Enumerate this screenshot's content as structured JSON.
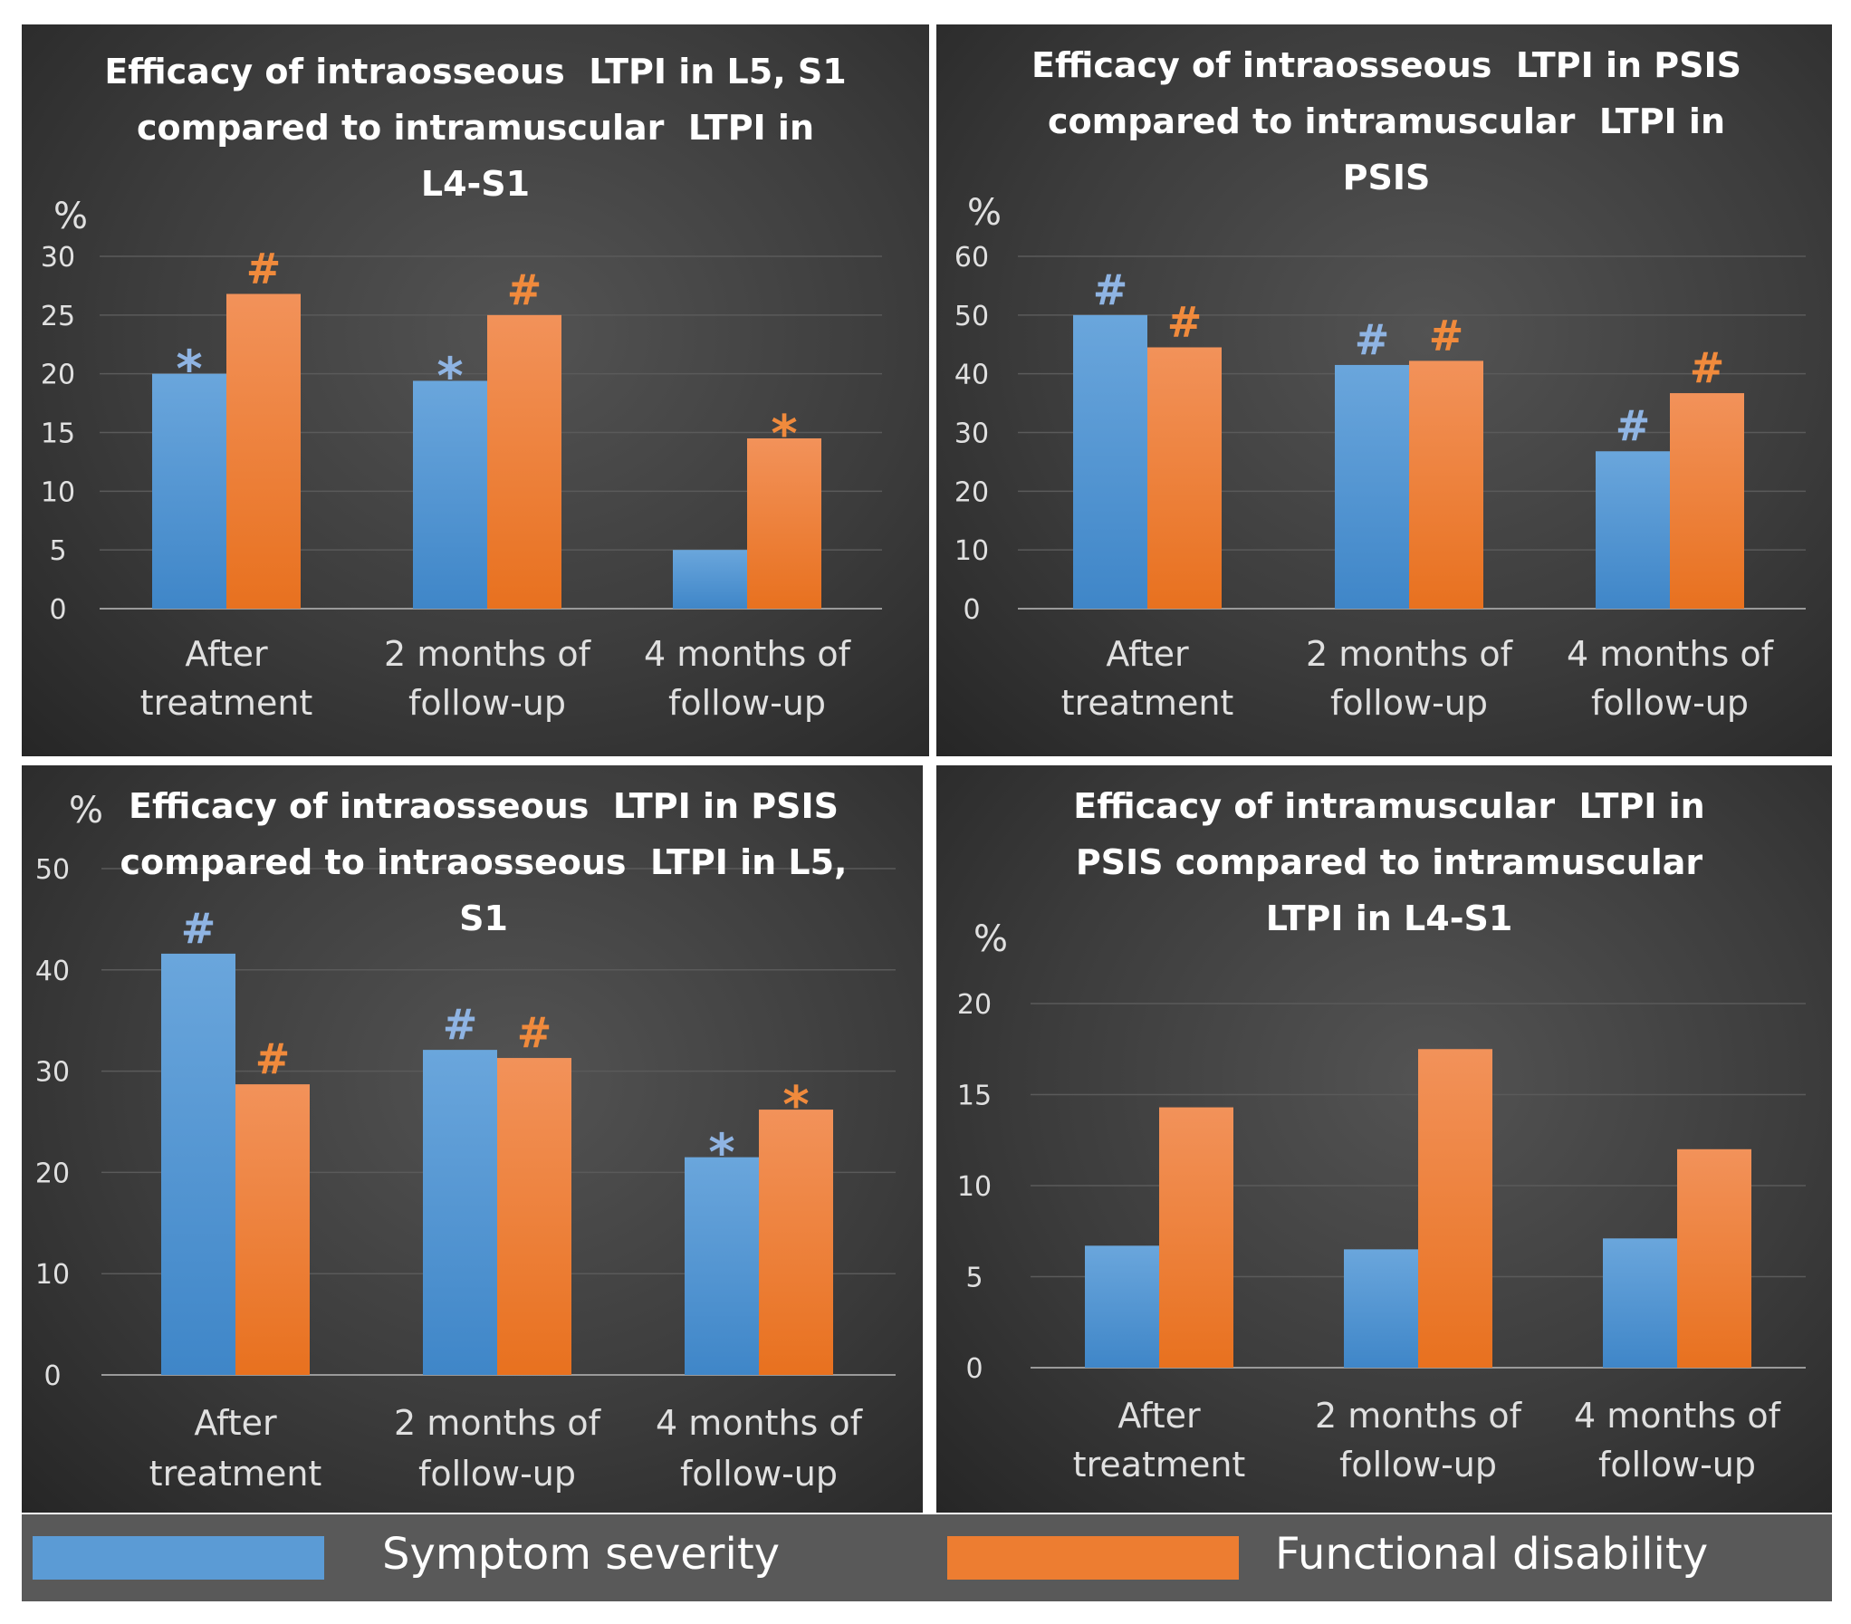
{
  "colors": {
    "symptom": "#5b9bd5",
    "functional": "#ed7d31",
    "symptom_mark": "#8fb4e3",
    "functional_mark": "#f08a3c",
    "axis_text": "#e0e0e0",
    "title_text": "#ffffff",
    "grid": "#5a5a5a",
    "baseline": "#9a9a9a"
  },
  "legend": {
    "items": [
      {
        "label": "Symptom severity",
        "color": "#5b9bd5"
      },
      {
        "label": "Functional disability",
        "color": "#ed7d31"
      }
    ]
  },
  "chart_data": [
    {
      "type": "bar",
      "title": [
        "Efficacy of intraosseous  LTPI in L5, S1",
        "compared to intramuscular  LTPI in",
        "L4-S1"
      ],
      "ylabel": "%",
      "ylim": [
        0,
        30
      ],
      "yticks": [
        0,
        5,
        10,
        15,
        20,
        25,
        30
      ],
      "grid": true,
      "categories": [
        [
          "After",
          "treatment"
        ],
        [
          "2 months of",
          "follow-up"
        ],
        [
          "4 months of",
          "follow-up"
        ]
      ],
      "series": [
        {
          "name": "Symptom severity",
          "values": [
            20,
            19.4,
            5
          ],
          "marks": [
            "*",
            "*",
            ""
          ]
        },
        {
          "name": "Functional disability",
          "values": [
            26.8,
            25,
            14.5
          ],
          "marks": [
            "#",
            "#",
            "*"
          ]
        }
      ]
    },
    {
      "type": "bar",
      "title": [
        "Efficacy of intraosseous  LTPI in PSIS",
        "compared to intramuscular  LTPI in",
        "PSIS"
      ],
      "ylabel": "%",
      "ylim": [
        0,
        60
      ],
      "yticks": [
        0,
        10,
        20,
        30,
        40,
        50,
        60
      ],
      "grid": true,
      "categories": [
        [
          "After",
          "treatment"
        ],
        [
          "2 months of",
          "follow-up"
        ],
        [
          "4 months of",
          "follow-up"
        ]
      ],
      "series": [
        {
          "name": "Symptom severity",
          "values": [
            50,
            41.5,
            26.8
          ],
          "marks": [
            "#",
            "#",
            "#"
          ]
        },
        {
          "name": "Functional disability",
          "values": [
            44.5,
            42.2,
            36.7
          ],
          "marks": [
            "#",
            "#",
            "#"
          ]
        }
      ]
    },
    {
      "type": "bar",
      "title": [
        "Efficacy of intraosseous  LTPI in PSIS",
        "compared to intraosseous  LTPI in L5,",
        "S1"
      ],
      "ylabel": "%",
      "ylim": [
        0,
        50
      ],
      "yticks": [
        0,
        10,
        20,
        30,
        40,
        50
      ],
      "grid": true,
      "categories": [
        [
          "After",
          "treatment"
        ],
        [
          "2 months of",
          "follow-up"
        ],
        [
          "4 months of",
          "follow-up"
        ]
      ],
      "series": [
        {
          "name": "Symptom severity",
          "values": [
            41.6,
            32.1,
            21.5
          ],
          "marks": [
            "#",
            "#",
            "*"
          ]
        },
        {
          "name": "Functional disability",
          "values": [
            28.7,
            31.3,
            26.2
          ],
          "marks": [
            "#",
            "#",
            "*"
          ]
        }
      ]
    },
    {
      "type": "bar",
      "title": [
        "Efficacy of intramuscular  LTPI in",
        "PSIS compared to intramuscular",
        "LTPI in L4-S1"
      ],
      "ylabel": "%",
      "ylim": [
        0,
        20
      ],
      "yticks": [
        0,
        5,
        10,
        15,
        20
      ],
      "grid": true,
      "categories": [
        [
          "After",
          "treatment"
        ],
        [
          "2 months of",
          "follow-up"
        ],
        [
          "4 months of",
          "follow-up"
        ]
      ],
      "series": [
        {
          "name": "Symptom severity",
          "values": [
            6.7,
            6.5,
            7.1
          ],
          "marks": [
            "",
            "",
            ""
          ]
        },
        {
          "name": "Functional disability",
          "values": [
            14.3,
            17.5,
            12
          ],
          "marks": [
            "",
            "",
            ""
          ]
        }
      ]
    }
  ]
}
